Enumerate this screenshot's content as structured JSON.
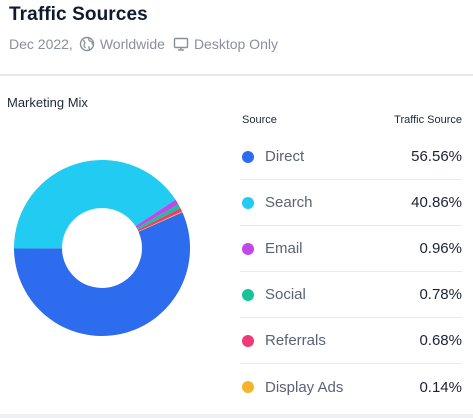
{
  "header": {
    "title": "Traffic Sources",
    "date": "Dec 2022,",
    "region": "Worldwide",
    "device": "Desktop Only",
    "region_icon": "globe-icon",
    "device_icon": "monitor-icon"
  },
  "legend": {
    "source_header": "Source",
    "value_header": "Traffic Source"
  },
  "chart_data": {
    "type": "pie",
    "title": "Marketing Mix",
    "donut": true,
    "unit": "%",
    "series": [
      {
        "name": "Direct",
        "value": 56.56,
        "label": "56.56%",
        "color": "#2d6bef"
      },
      {
        "name": "Search",
        "value": 40.86,
        "label": "40.86%",
        "color": "#21cbf1"
      },
      {
        "name": "Email",
        "value": 0.96,
        "label": "0.96%",
        "color": "#c346e8"
      },
      {
        "name": "Social",
        "value": 0.78,
        "label": "0.78%",
        "color": "#17c39b"
      },
      {
        "name": "Referrals",
        "value": 0.68,
        "label": "0.68%",
        "color": "#ee3a76"
      },
      {
        "name": "Display Ads",
        "value": 0.14,
        "label": "0.14%",
        "color": "#f6b32b"
      }
    ]
  }
}
